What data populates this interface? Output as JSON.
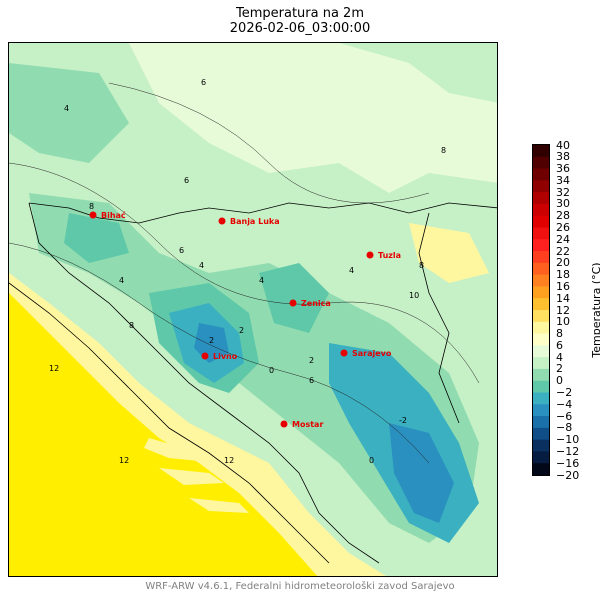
{
  "title": "Temperatura na 2m",
  "subtitle": "2026-02-06_03:00:00",
  "footer": "WRF-ARW v4.6.1, Federalni hidrometeorološki zavod Sarajevo",
  "colorbar": {
    "label": "Temperatura (°C)",
    "ticks": [
      "40",
      "38",
      "36",
      "34",
      "32",
      "30",
      "28",
      "26",
      "24",
      "22",
      "20",
      "18",
      "16",
      "14",
      "12",
      "10",
      "8",
      "6",
      "4",
      "2",
      "0",
      "−2",
      "−4",
      "−6",
      "−8",
      "−10",
      "−12",
      "−16",
      "−20"
    ],
    "colors": [
      "#300000",
      "#500000",
      "#700000",
      "#900000",
      "#b00000",
      "#cc0000",
      "#e00000",
      "#f01010",
      "#ff2020",
      "#ff4020",
      "#ff6020",
      "#ff8020",
      "#ffa020",
      "#ffc030",
      "#ffe060",
      "#fff7a0",
      "#ffffc8",
      "#e8fbd8",
      "#c6f0c6",
      "#90dcb0",
      "#5ec8a8",
      "#3ab0c0",
      "#2a90c0",
      "#1a70a8",
      "#104e88",
      "#0a3060",
      "#061c40",
      "#020818"
    ]
  },
  "cities": [
    {
      "name": "Bihać"
    },
    {
      "name": "Banja Luka"
    },
    {
      "name": "Tuzla"
    },
    {
      "name": "Zenica"
    },
    {
      "name": "Livno"
    },
    {
      "name": "Sarajevo"
    },
    {
      "name": "Mostar"
    }
  ],
  "contour_labels": [
    "4",
    "6",
    "8",
    "8",
    "6",
    "4",
    "2",
    "0",
    "2",
    "4",
    "6",
    "8",
    "12",
    "12",
    "12",
    "10",
    "8",
    "4",
    "2",
    "0",
    "-2",
    "6",
    "4"
  ],
  "colors": {
    "sea": "#ffee00",
    "coast_warm": "#fff7a0",
    "land_base": "#c6f0c6",
    "cold": "#3ab0c0",
    "very_cold": "#2a90c0",
    "teal": "#90dcb0",
    "city": "#e60000"
  }
}
